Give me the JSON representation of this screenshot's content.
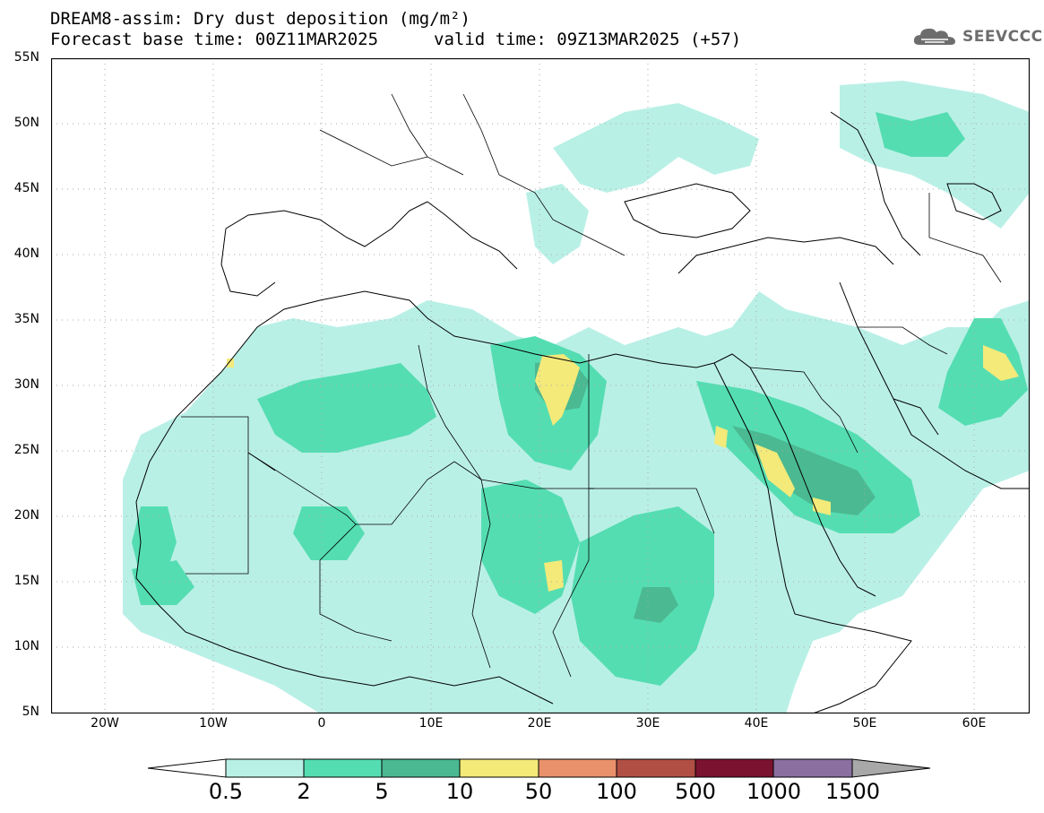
{
  "header": {
    "title_line1": "DREAM8-assim: Dry dust deposition (mg/m²)",
    "title_line2_base": "Forecast base time: 00Z11MAR2025",
    "title_line2_valid": "valid time: 09Z13MAR2025 (+57)"
  },
  "logo": {
    "text": "SEEVCCC",
    "icon": "cloud-icon",
    "color": "#6d6d6d"
  },
  "map": {
    "lon_range": [
      -25,
      65
    ],
    "lat_range": [
      5,
      55
    ],
    "lat_ticks": [
      "55N",
      "50N",
      "45N",
      "40N",
      "35N",
      "30N",
      "25N",
      "20N",
      "15N",
      "10N",
      "5N"
    ],
    "lon_ticks": [
      "20W",
      "10W",
      "0",
      "10E",
      "20E",
      "30E",
      "40E",
      "50E",
      "60E"
    ],
    "gridlines": "dotted"
  },
  "colorbar": {
    "levels": [
      "0.5",
      "2",
      "5",
      "10",
      "50",
      "100",
      "500",
      "1000",
      "1500"
    ],
    "colors": [
      "#b9f0e6",
      "#55ddb2",
      "#4bb991",
      "#f3ea7a",
      "#e9916a",
      "#b14f45",
      "#7b1230",
      "#8a6fa0",
      "#a8a8a8"
    ],
    "under_color": "#ffffff",
    "over_color": "#a8a8a8"
  },
  "legend_colors": {
    "lvl1": "#b9f0e6",
    "lvl2": "#55ddb2",
    "lvl3": "#4bb991",
    "lvl4": "#f3ea7a"
  }
}
